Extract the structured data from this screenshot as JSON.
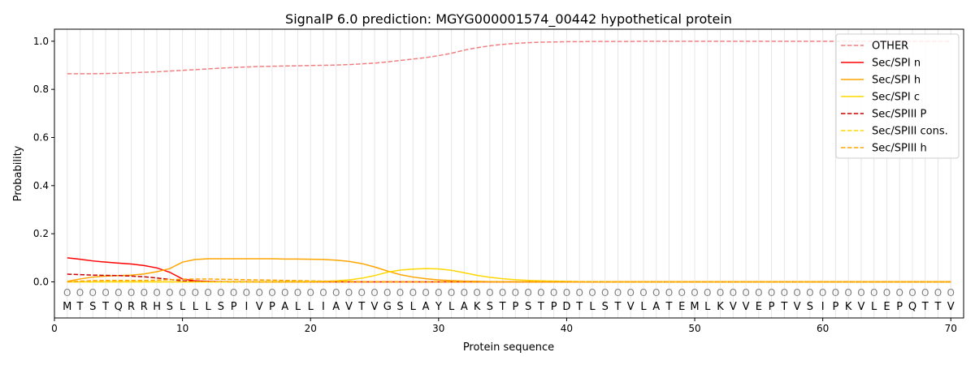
{
  "chart_data": {
    "type": "line",
    "title": "SignalP 6.0 prediction: MGYG000001574_00442 hypothetical protein",
    "xlabel": "Protein sequence",
    "ylabel": "Probability",
    "xlim": [
      0,
      71
    ],
    "ylim": [
      -0.15,
      1.05
    ],
    "xticks": [
      0,
      10,
      20,
      30,
      40,
      50,
      60,
      70
    ],
    "yticks": [
      0.0,
      0.2,
      0.4,
      0.6,
      0.8,
      1.0
    ],
    "ytick_labels": [
      "0.0",
      "0.2",
      "0.4",
      "0.6",
      "0.8",
      "1.0"
    ],
    "grid": "vertical lines at each residue",
    "legend_position": "top-right",
    "sequence": [
      "M",
      "T",
      "S",
      "T",
      "Q",
      "R",
      "R",
      "H",
      "S",
      "L",
      "L",
      "L",
      "S",
      "P",
      "I",
      "V",
      "P",
      "A",
      "L",
      "L",
      "I",
      "A",
      "V",
      "T",
      "V",
      "G",
      "S",
      "L",
      "A",
      "Y",
      "L",
      "A",
      "K",
      "S",
      "T",
      "P",
      "S",
      "T",
      "P",
      "D",
      "T",
      "L",
      "S",
      "T",
      "V",
      "L",
      "A",
      "T",
      "E",
      "M",
      "L",
      "K",
      "V",
      "V",
      "E",
      "P",
      "T",
      "V",
      "S",
      "I",
      "P",
      "K",
      "V",
      "L",
      "E",
      "P",
      "Q",
      "T",
      "T",
      "V"
    ],
    "region_labels": [
      "O",
      "O",
      "O",
      "O",
      "O",
      "O",
      "O",
      "O",
      "O",
      "O",
      "O",
      "O",
      "O",
      "O",
      "O",
      "O",
      "O",
      "O",
      "O",
      "O",
      "O",
      "O",
      "O",
      "O",
      "O",
      "O",
      "O",
      "O",
      "O",
      "O",
      "O",
      "O",
      "O",
      "O",
      "O",
      "O",
      "O",
      "O",
      "O",
      "O",
      "O",
      "O",
      "O",
      "O",
      "O",
      "O",
      "O",
      "O",
      "O",
      "O",
      "O",
      "O",
      "O",
      "O",
      "O",
      "O",
      "O",
      "O",
      "O",
      "O",
      "O",
      "O",
      "O",
      "O",
      "O",
      "O",
      "O",
      "O",
      "O",
      "O"
    ],
    "x": [
      1,
      2,
      3,
      4,
      5,
      6,
      7,
      8,
      9,
      10,
      11,
      12,
      13,
      14,
      15,
      16,
      17,
      18,
      19,
      20,
      21,
      22,
      23,
      24,
      25,
      26,
      27,
      28,
      29,
      30,
      31,
      32,
      33,
      34,
      35,
      36,
      37,
      38,
      39,
      40,
      41,
      42,
      43,
      44,
      45,
      46,
      47,
      48,
      49,
      50,
      51,
      52,
      53,
      54,
      55,
      56,
      57,
      58,
      59,
      60,
      61,
      62,
      63,
      64,
      65,
      66,
      67,
      68,
      69,
      70
    ],
    "series": [
      {
        "name": "OTHER",
        "color": "#f08080",
        "dash": "dashed",
        "values": [
          0.865,
          0.865,
          0.865,
          0.866,
          0.867,
          0.869,
          0.871,
          0.873,
          0.876,
          0.879,
          0.882,
          0.885,
          0.888,
          0.891,
          0.893,
          0.895,
          0.896,
          0.897,
          0.898,
          0.899,
          0.9,
          0.901,
          0.903,
          0.906,
          0.909,
          0.914,
          0.92,
          0.926,
          0.932,
          0.94,
          0.95,
          0.963,
          0.973,
          0.981,
          0.987,
          0.991,
          0.994,
          0.996,
          0.997,
          0.998,
          0.998,
          0.999,
          0.999,
          0.999,
          0.999,
          1.0,
          1.0,
          1.0,
          1.0,
          1.0,
          1.0,
          1.0,
          1.0,
          1.0,
          1.0,
          1.0,
          1.0,
          1.0,
          1.0,
          1.0,
          1.0,
          1.0,
          1.0,
          1.0,
          1.0,
          1.0,
          1.0,
          1.0,
          1.0,
          1.0
        ]
      },
      {
        "name": "Sec/SPI n",
        "color": "#ff0000",
        "dash": "solid",
        "values": [
          0.1,
          0.094,
          0.087,
          0.082,
          0.078,
          0.074,
          0.068,
          0.058,
          0.04,
          0.012,
          0.004,
          0.002,
          0.001,
          0.001,
          0.001,
          0.0,
          0.0,
          0.0,
          0.0,
          0.0,
          0.0,
          0.0,
          0.0,
          0.0,
          0.0,
          0.0,
          0.0,
          0.0,
          0.0,
          0.0,
          0.0,
          0.0,
          0.0,
          0.0,
          0.0,
          0.0,
          0.0,
          0.0,
          0.0,
          0.0,
          0.0,
          0.0,
          0.0,
          0.0,
          0.0,
          0.0,
          0.0,
          0.0,
          0.0,
          0.0,
          0.0,
          0.0,
          0.0,
          0.0,
          0.0,
          0.0,
          0.0,
          0.0,
          0.0,
          0.0,
          0.0,
          0.0,
          0.0,
          0.0,
          0.0,
          0.0,
          0.0,
          0.0,
          0.0,
          0.0
        ]
      },
      {
        "name": "Sec/SPI h",
        "color": "#ffa500",
        "dash": "solid",
        "values": [
          0.002,
          0.012,
          0.02,
          0.024,
          0.026,
          0.028,
          0.033,
          0.042,
          0.055,
          0.082,
          0.093,
          0.096,
          0.096,
          0.096,
          0.096,
          0.096,
          0.096,
          0.095,
          0.095,
          0.094,
          0.093,
          0.09,
          0.085,
          0.076,
          0.062,
          0.045,
          0.03,
          0.02,
          0.013,
          0.008,
          0.005,
          0.003,
          0.002,
          0.001,
          0.001,
          0.0,
          0.0,
          0.0,
          0.0,
          0.0,
          0.0,
          0.0,
          0.0,
          0.0,
          0.0,
          0.0,
          0.0,
          0.0,
          0.0,
          0.0,
          0.0,
          0.0,
          0.0,
          0.0,
          0.0,
          0.0,
          0.0,
          0.0,
          0.0,
          0.0,
          0.0,
          0.0,
          0.0,
          0.0,
          0.0,
          0.0,
          0.0,
          0.0,
          0.0,
          0.0
        ]
      },
      {
        "name": "Sec/SPI c",
        "color": "#ffd700",
        "dash": "solid",
        "values": [
          0.0,
          0.0,
          0.0,
          0.0,
          0.0,
          0.0,
          0.0,
          0.0,
          0.0,
          0.0,
          0.0,
          0.0,
          0.0,
          0.0,
          0.0,
          0.0,
          0.0,
          0.0,
          0.0,
          0.001,
          0.002,
          0.004,
          0.008,
          0.015,
          0.026,
          0.04,
          0.049,
          0.053,
          0.055,
          0.054,
          0.048,
          0.038,
          0.027,
          0.019,
          0.013,
          0.009,
          0.006,
          0.004,
          0.003,
          0.002,
          0.001,
          0.001,
          0.001,
          0.0,
          0.0,
          0.0,
          0.0,
          0.0,
          0.0,
          0.0,
          0.0,
          0.0,
          0.0,
          0.0,
          0.0,
          0.0,
          0.0,
          0.0,
          0.0,
          0.0,
          0.0,
          0.0,
          0.0,
          0.0,
          0.0,
          0.0,
          0.0,
          0.0,
          0.0,
          0.0
        ]
      },
      {
        "name": "Sec/SPIII P",
        "color": "#cc0000",
        "dash": "dashed",
        "values": [
          0.032,
          0.03,
          0.028,
          0.027,
          0.026,
          0.024,
          0.021,
          0.016,
          0.01,
          0.004,
          0.002,
          0.001,
          0.001,
          0.0,
          0.0,
          0.0,
          0.0,
          0.0,
          0.0,
          0.0,
          0.0,
          0.0,
          0.0,
          0.0,
          0.0,
          0.0,
          0.0,
          0.0,
          0.0,
          0.0,
          0.0,
          0.0,
          0.0,
          0.0,
          0.0,
          0.0,
          0.0,
          0.0,
          0.0,
          0.0,
          0.0,
          0.0,
          0.0,
          0.0,
          0.0,
          0.0,
          0.0,
          0.0,
          0.0,
          0.0,
          0.0,
          0.0,
          0.0,
          0.0,
          0.0,
          0.0,
          0.0,
          0.0,
          0.0,
          0.0,
          0.0,
          0.0,
          0.0,
          0.0,
          0.0,
          0.0,
          0.0,
          0.0,
          0.0,
          0.0
        ]
      },
      {
        "name": "Sec/SPIII cons.",
        "color": "#ffd700",
        "dash": "dashed",
        "values": [
          0.0,
          0.0,
          0.0,
          0.0,
          0.0,
          0.0,
          0.0,
          0.0,
          0.0,
          0.0,
          0.0,
          0.0,
          0.0,
          0.0,
          0.0,
          0.0,
          0.0,
          0.0,
          0.0,
          0.0,
          0.0,
          0.0,
          0.0,
          0.0,
          0.0,
          0.0,
          0.0,
          0.0,
          0.0,
          0.0,
          0.0,
          0.0,
          0.0,
          0.0,
          0.0,
          0.0,
          0.0,
          0.0,
          0.0,
          0.0,
          0.0,
          0.0,
          0.0,
          0.0,
          0.0,
          0.0,
          0.0,
          0.0,
          0.0,
          0.0,
          0.0,
          0.0,
          0.0,
          0.0,
          0.0,
          0.0,
          0.0,
          0.0,
          0.0,
          0.0,
          0.0,
          0.0,
          0.0,
          0.0,
          0.0,
          0.0,
          0.0,
          0.0,
          0.0,
          0.0
        ]
      },
      {
        "name": "Sec/SPIII h",
        "color": "#ffa500",
        "dash": "dashed",
        "values": [
          0.0,
          0.003,
          0.005,
          0.006,
          0.006,
          0.006,
          0.006,
          0.007,
          0.009,
          0.011,
          0.012,
          0.012,
          0.011,
          0.01,
          0.009,
          0.008,
          0.007,
          0.006,
          0.005,
          0.004,
          0.003,
          0.002,
          0.002,
          0.001,
          0.001,
          0.0,
          0.0,
          0.0,
          0.0,
          0.0,
          0.0,
          0.0,
          0.0,
          0.0,
          0.0,
          0.0,
          0.0,
          0.0,
          0.0,
          0.0,
          0.0,
          0.0,
          0.0,
          0.0,
          0.0,
          0.0,
          0.0,
          0.0,
          0.0,
          0.0,
          0.0,
          0.0,
          0.0,
          0.0,
          0.0,
          0.0,
          0.0,
          0.0,
          0.0,
          0.0,
          0.0,
          0.0,
          0.0,
          0.0,
          0.0,
          0.0,
          0.0,
          0.0,
          0.0,
          0.0
        ]
      }
    ]
  }
}
